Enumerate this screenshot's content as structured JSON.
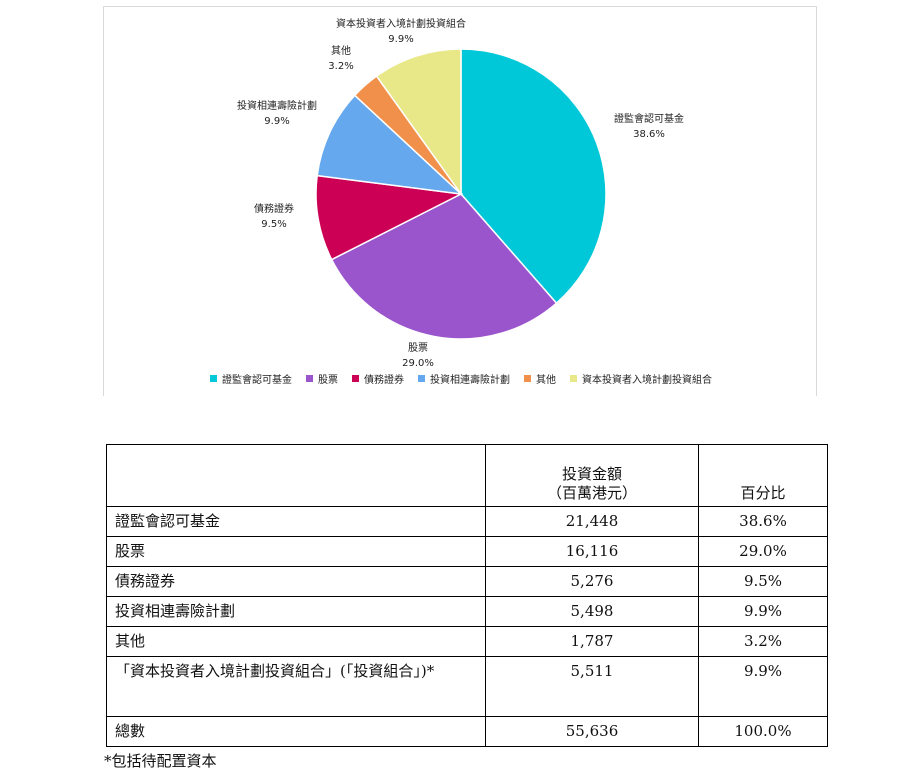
{
  "chart_data": {
    "type": "pie",
    "slices": [
      {
        "label": "證監會認可基金",
        "value": 38.6,
        "value_label": "38.6%",
        "color": "#00c8d8"
      },
      {
        "label": "股票",
        "value": 29.0,
        "value_label": "29.0%",
        "color": "#9a55cc"
      },
      {
        "label": "債務證券",
        "value": 9.5,
        "value_label": "9.5%",
        "color": "#cc0055"
      },
      {
        "label": "投資相連壽險計劃",
        "value": 9.9,
        "value_label": "9.9%",
        "color": "#66a8ee"
      },
      {
        "label": "其他",
        "value": 3.2,
        "value_label": "3.2%",
        "color": "#f0904a"
      },
      {
        "label": "資本投資者入境計劃投資組合",
        "value": 9.9,
        "value_label": "9.9%",
        "color": "#e8e888"
      }
    ],
    "legend_position": "bottom"
  },
  "table": {
    "header": {
      "category": "",
      "amount_line1": "投資金額",
      "amount_line2": "（百萬港元）",
      "percent": "百分比"
    },
    "rows": [
      {
        "category": "證監會認可基金",
        "amount": "21,448",
        "percent": "38.6%"
      },
      {
        "category": "股票",
        "amount": "16,116",
        "percent": "29.0%"
      },
      {
        "category": "債務證券",
        "amount": "5,276",
        "percent": "9.5%"
      },
      {
        "category": "投資相連壽險計劃",
        "amount": "5,498",
        "percent": "9.9%"
      },
      {
        "category": "其他",
        "amount": "1,787",
        "percent": "3.2%"
      },
      {
        "category": "「資本投資者入境計劃投資組合」(「投資組合」)*",
        "amount": "5,511",
        "percent": "9.9%"
      },
      {
        "category": "總數",
        "amount": "55,636",
        "percent": "100.0%"
      }
    ]
  },
  "footnote": "*包括待配置資本"
}
